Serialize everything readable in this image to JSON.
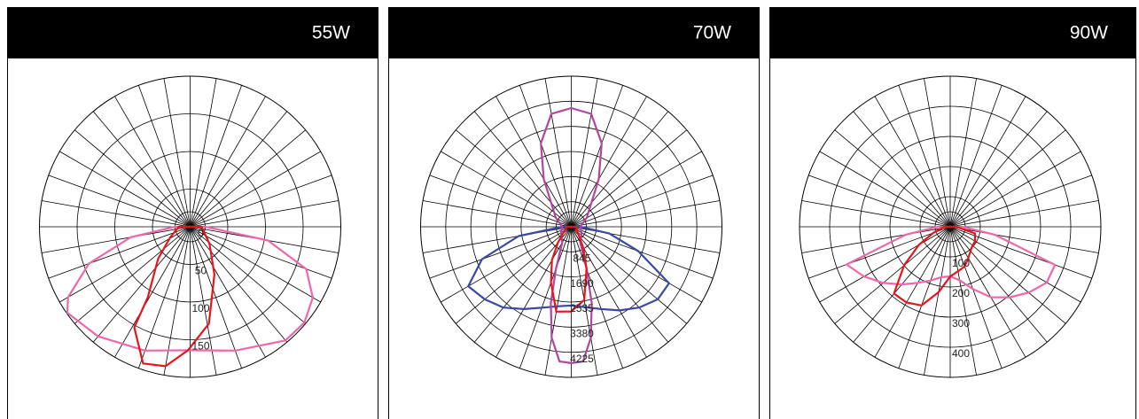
{
  "chart_data": [
    {
      "type": "polar",
      "title": "55W",
      "rlim": [
        0,
        200
      ],
      "rticks": [
        0,
        50,
        100,
        150
      ],
      "series": [
        {
          "color": "#ef67aa",
          "theta": [
            -90,
            -80,
            -70,
            -60,
            -55,
            -40,
            -20,
            0,
            20,
            40,
            50,
            60,
            70,
            80,
            90
          ],
          "values": [
            20,
            80,
            143,
            187,
            199,
            190,
            175,
            164,
            175,
            197,
            198,
            188,
            164,
            105,
            20
          ]
        },
        {
          "color": "#e8141c",
          "theta": [
            -90,
            -62,
            -45,
            -31,
            -29,
            -19,
            -10,
            -1,
            11,
            27,
            49,
            90
          ],
          "values": [
            15,
            30,
            60,
            109,
            153,
            192,
            188,
            164,
            131,
            71,
            34,
            15
          ]
        }
      ]
    },
    {
      "type": "polar",
      "title": "70W",
      "rlim": [
        0,
        5070
      ],
      "rticks": [
        845,
        1690,
        2535,
        3380,
        4225
      ],
      "series": [
        {
          "color": "#3a4aa0",
          "theta": [
            -90,
            -80,
            -70,
            -60,
            -50,
            -40,
            -30,
            -20,
            -10,
            0,
            10,
            20,
            30,
            40,
            50,
            60,
            70,
            80,
            90
          ],
          "values": [
            300,
            1800,
            3200,
            4000,
            3800,
            3550,
            3200,
            2900,
            2720,
            2650,
            2750,
            2950,
            3250,
            3550,
            3800,
            3800,
            2400,
            1300,
            300
          ]
        },
        {
          "color": "#b0469e",
          "theta": [
            -180,
            -170,
            -160,
            -150,
            -120,
            -90,
            -60,
            -30,
            -20,
            -15,
            -10,
            -5,
            0,
            5,
            10,
            15,
            20,
            30,
            60,
            90,
            120,
            150,
            160,
            170
          ],
          "values": [
            3996,
            3860,
            2990,
            1850,
            600,
            300,
            400,
            610,
            1510,
            2660,
            3790,
            4550,
            4590,
            4550,
            3790,
            2660,
            1510,
            610,
            400,
            300,
            600,
            1850,
            2990,
            3860
          ]
        },
        {
          "color": "#e8141c",
          "theta": [
            -90,
            -40,
            -30,
            -20,
            -10,
            0,
            10,
            20,
            30,
            40,
            90
          ],
          "values": [
            150,
            700,
            1300,
            2000,
            2900,
            2850,
            2500,
            1500,
            800,
            400,
            150
          ]
        }
      ]
    },
    {
      "type": "polar",
      "title": "90W",
      "rlim": [
        0,
        500
      ],
      "rticks": [
        100,
        200,
        300,
        400
      ],
      "series": [
        {
          "color": "#ef67aa",
          "theta": [
            -90,
            -80,
            -70,
            -60,
            -50,
            -40,
            -30,
            -20,
            -10,
            0,
            10,
            20,
            30,
            40,
            50,
            60,
            70,
            80,
            90
          ],
          "values": [
            40,
            150,
            366,
            330,
            290,
            250,
            215,
            190,
            170,
            165,
            180,
            220,
            270,
            306,
            340,
            370,
            370,
            150,
            40
          ]
        },
        {
          "color": "#e8141c",
          "theta": [
            -90,
            -70,
            -60,
            -50,
            -40,
            -30,
            -20,
            -10,
            0,
            10,
            20,
            30,
            45,
            60,
            75,
            90
          ],
          "values": [
            20,
            60,
            120,
            200,
            290,
            290,
            278,
            220,
            165,
            150,
            140,
            120,
            100,
            95,
            85,
            20
          ]
        }
      ]
    }
  ]
}
